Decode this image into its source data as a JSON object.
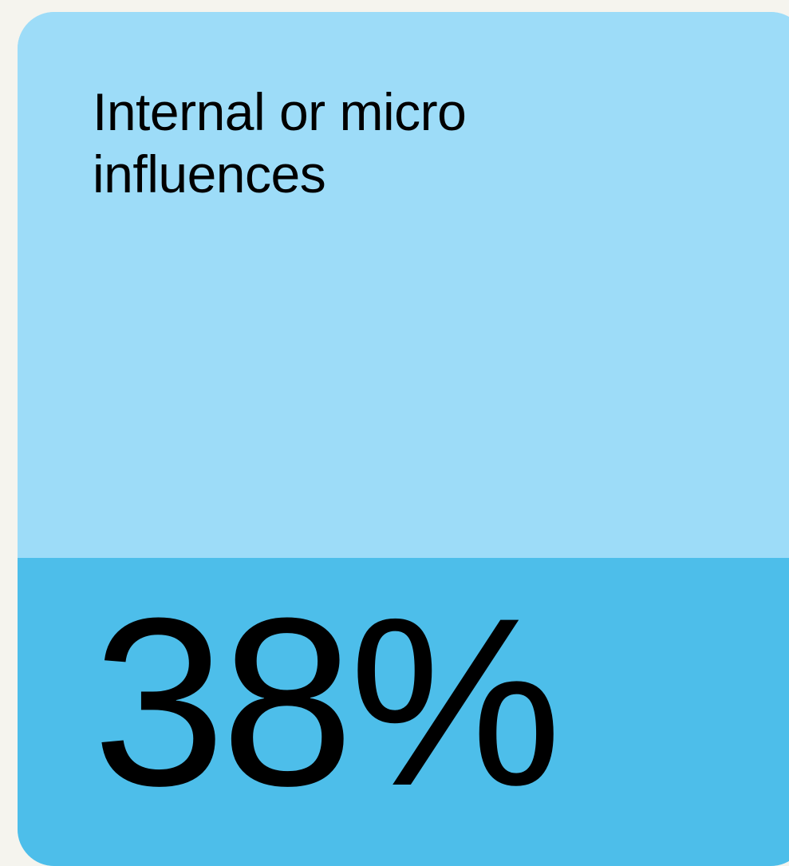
{
  "card": {
    "title": "Internal or micro influences",
    "value": "38%",
    "colors": {
      "top_panel": "#9ddcf8",
      "bottom_panel": "#4dbeea",
      "page_background": "#f5f4ee",
      "text": "#000000"
    }
  }
}
